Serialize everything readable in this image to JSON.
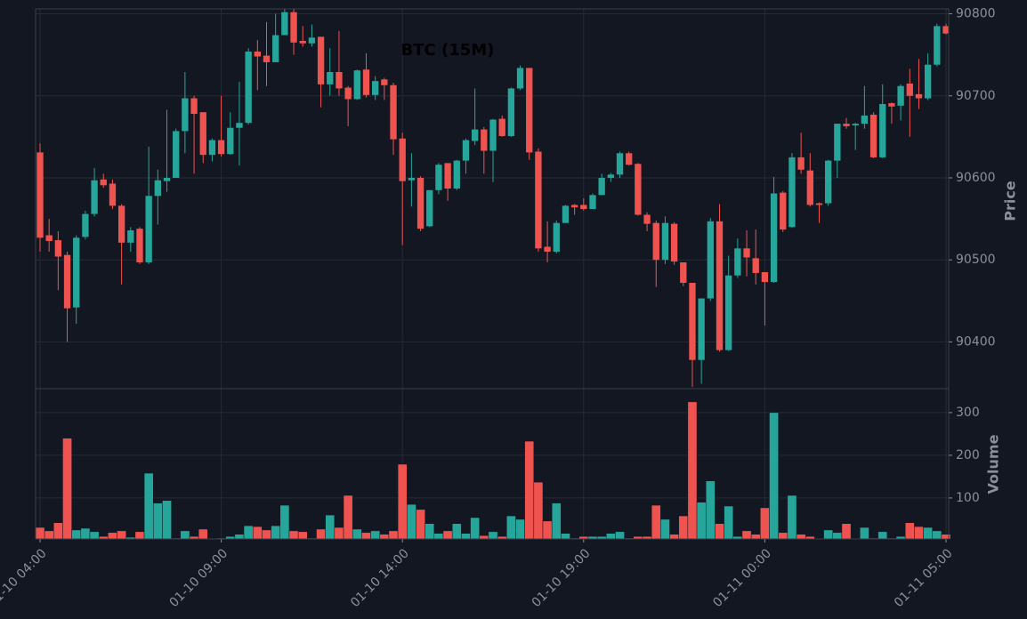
{
  "chart_data": {
    "type": "candlestick",
    "title": "BTC (15M)",
    "ylabel": "Price",
    "x": [
      "01-10 04:00",
      "01-10 04:15",
      "01-10 04:30",
      "01-10 04:45",
      "01-10 05:00",
      "01-10 05:15",
      "01-10 05:30",
      "01-10 05:45",
      "01-10 06:00",
      "01-10 06:15",
      "01-10 06:30",
      "01-10 06:45",
      "01-10 07:00",
      "01-10 07:15",
      "01-10 07:30",
      "01-10 07:45",
      "01-10 08:00",
      "01-10 08:15",
      "01-10 08:30",
      "01-10 08:45",
      "01-10 09:00",
      "01-10 09:15",
      "01-10 09:30",
      "01-10 09:45",
      "01-10 10:00",
      "01-10 10:15",
      "01-10 10:30",
      "01-10 10:45",
      "01-10 11:00",
      "01-10 11:15",
      "01-10 11:30",
      "01-10 11:45",
      "01-10 12:00",
      "01-10 12:15",
      "01-10 12:30",
      "01-10 12:45",
      "01-10 13:00",
      "01-10 13:15",
      "01-10 13:30",
      "01-10 13:45",
      "01-10 14:00",
      "01-10 14:15",
      "01-10 14:30",
      "01-10 14:45",
      "01-10 15:00",
      "01-10 15:15",
      "01-10 15:30",
      "01-10 15:45",
      "01-10 16:00",
      "01-10 16:15",
      "01-10 16:30",
      "01-10 16:45",
      "01-10 17:00",
      "01-10 17:15",
      "01-10 17:30",
      "01-10 17:45",
      "01-10 18:00",
      "01-10 18:15",
      "01-10 18:30",
      "01-10 18:45",
      "01-10 19:00",
      "01-10 19:15",
      "01-10 19:30",
      "01-10 19:45",
      "01-10 20:00",
      "01-10 20:15",
      "01-10 20:30",
      "01-10 20:45",
      "01-10 21:00",
      "01-10 21:15",
      "01-10 21:30",
      "01-10 21:45",
      "01-10 22:00",
      "01-10 22:15",
      "01-10 22:30",
      "01-10 22:45",
      "01-10 23:00",
      "01-10 23:15",
      "01-10 23:30",
      "01-10 23:45",
      "01-11 00:00",
      "01-11 00:15",
      "01-11 00:30",
      "01-11 00:45",
      "01-11 01:00",
      "01-11 01:15",
      "01-11 01:30",
      "01-11 01:45",
      "01-11 02:00",
      "01-11 02:15",
      "01-11 02:30",
      "01-11 02:45",
      "01-11 03:00",
      "01-11 03:15",
      "01-11 03:30",
      "01-11 03:45",
      "01-11 04:00",
      "01-11 04:15",
      "01-11 04:30",
      "01-11 04:45",
      "01-11 05:00"
    ],
    "xticks": [
      "01-10 04:00",
      "01-10 09:00",
      "01-10 14:00",
      "01-10 19:00",
      "01-11 00:00",
      "01-11 05:00"
    ],
    "open": [
      90631,
      90530,
      90524,
      90506,
      90442,
      90528,
      90556,
      90598,
      90593,
      90566,
      90521,
      90538,
      90497,
      90578,
      90596,
      90600,
      90657,
      90697,
      90680,
      90628,
      90646,
      90629,
      90661,
      90667,
      90754,
      90749,
      90741,
      90774,
      90802,
      90767,
      90764,
      90772,
      90714,
      90729,
      90710,
      90696,
      90732,
      90701,
      90720,
      90713,
      90648,
      90597,
      90600,
      90541,
      90585,
      90618,
      90587,
      90621,
      90645,
      90659,
      90633,
      90672,
      90651,
      90709,
      90734,
      90632,
      90516,
      90510,
      90545,
      90567,
      90567,
      90562,
      90579,
      90600,
      90604,
      90630,
      90617,
      90555,
      90545,
      90500,
      90544,
      90497,
      90472,
      90378,
      90453,
      90547,
      90390,
      90481,
      90514,
      90502,
      90485,
      90473,
      90582,
      90540,
      90625,
      90609,
      90569,
      90569,
      90621,
      90666,
      90664,
      90666,
      90677,
      90625,
      90691,
      90688,
      90715,
      90702,
      90697,
      90738,
      90785
    ],
    "high": [
      90642,
      90550,
      90535,
      90510,
      90530,
      90560,
      90612,
      90605,
      90598,
      90568,
      90540,
      90540,
      90638,
      90610,
      90683,
      90660,
      90729,
      90700,
      90680,
      90648,
      90700,
      90680,
      90717,
      90758,
      90768,
      90790,
      90800,
      90806,
      90806,
      90785,
      90787,
      90772,
      90758,
      90779,
      90712,
      90732,
      90752,
      90724,
      90722,
      90716,
      90655,
      90630,
      90602,
      90585,
      90618,
      90618,
      90622,
      90648,
      90709,
      90662,
      90672,
      90676,
      90710,
      90737,
      90734,
      90636,
      90547,
      90548,
      90567,
      90568,
      90575,
      90581,
      90605,
      90606,
      90632,
      90632,
      90618,
      90558,
      90548,
      90553,
      90546,
      90497,
      90472,
      90453,
      90551,
      90568,
      90505,
      90526,
      90536,
      90537,
      90485,
      90601,
      90584,
      90630,
      90655,
      90630,
      90570,
      90622,
      90666,
      90673,
      90667,
      90712,
      90680,
      90714,
      90692,
      90714,
      90733,
      90745,
      90752,
      90788,
      90788
    ],
    "low": [
      90510,
      90510,
      90463,
      90400,
      90422,
      90525,
      90553,
      90588,
      90562,
      90470,
      90510,
      90495,
      90495,
      90543,
      90583,
      90600,
      90630,
      90605,
      90618,
      90620,
      90626,
      90628,
      90615,
      90665,
      90707,
      90712,
      90741,
      90774,
      90750,
      90760,
      90760,
      90686,
      90700,
      90700,
      90663,
      90695,
      90698,
      90695,
      90695,
      90628,
      90518,
      90565,
      90535,
      90540,
      90580,
      90572,
      90585,
      90605,
      90640,
      90605,
      90595,
      90650,
      90650,
      90707,
      90622,
      90510,
      90497,
      90508,
      90545,
      90555,
      90560,
      90562,
      90580,
      90595,
      90600,
      90615,
      90554,
      90535,
      90467,
      90495,
      90494,
      90468,
      90345,
      90349,
      90450,
      90388,
      90389,
      90478,
      90480,
      90470,
      90420,
      90472,
      90534,
      90539,
      90605,
      90565,
      90545,
      90566,
      90600,
      90660,
      90634,
      90660,
      90624,
      90624,
      90666,
      90670,
      90650,
      90684,
      90695,
      90736,
      90775
    ],
    "close": [
      90527,
      90523,
      90504,
      90441,
      90527,
      90556,
      90597,
      90591,
      90566,
      90521,
      90536,
      90497,
      90578,
      90597,
      90600,
      90657,
      90697,
      90678,
      90628,
      90646,
      90629,
      90661,
      90667,
      90754,
      90748,
      90741,
      90774,
      90802,
      90765,
      90764,
      90771,
      90714,
      90729,
      90709,
      90696,
      90731,
      90701,
      90718,
      90713,
      90647,
      90596,
      90600,
      90538,
      90585,
      90616,
      90587,
      90621,
      90646,
      90659,
      90633,
      90671,
      90651,
      90709,
      90734,
      90631,
      90514,
      90510,
      90545,
      90566,
      90564,
      90562,
      90579,
      90600,
      90604,
      90630,
      90616,
      90555,
      90544,
      90500,
      90545,
      90498,
      90472,
      90378,
      90453,
      90547,
      90390,
      90481,
      90514,
      90503,
      90484,
      90473,
      90581,
      90537,
      90625,
      90610,
      90567,
      90567,
      90621,
      90666,
      90663,
      90666,
      90676,
      90625,
      90690,
      90687,
      90712,
      90700,
      90697,
      90738,
      90785,
      90776
    ],
    "ylim": [
      90343,
      90806
    ],
    "yticks": [
      90400,
      90500,
      90600,
      90700,
      90800
    ],
    "volume": {
      "label": "Volume",
      "values": [
        31,
        23,
        42,
        240,
        25,
        29,
        21,
        10,
        19,
        23,
        8,
        21,
        158,
        88,
        94,
        6,
        23,
        10,
        27,
        4,
        6,
        10,
        15,
        35,
        33,
        25,
        35,
        83,
        23,
        21,
        6,
        27,
        60,
        31,
        106,
        27,
        19,
        23,
        15,
        23,
        179,
        85,
        73,
        40,
        17,
        23,
        40,
        17,
        54,
        12,
        21,
        10,
        58,
        50,
        233,
        137,
        46,
        88,
        17,
        6,
        10,
        10,
        10,
        17,
        21,
        6,
        10,
        10,
        83,
        50,
        15,
        58,
        325,
        90,
        140,
        40,
        81,
        10,
        23,
        15,
        77,
        300,
        19,
        106,
        15,
        10,
        4,
        25,
        19,
        40,
        4,
        31,
        6,
        21,
        6,
        10,
        42,
        33,
        31,
        23,
        15
      ],
      "ylim": [
        4,
        356
      ],
      "yticks": [
        100,
        200,
        300
      ]
    },
    "up_color": "#26a69a",
    "down_color": "#ef5350",
    "grid": true
  }
}
